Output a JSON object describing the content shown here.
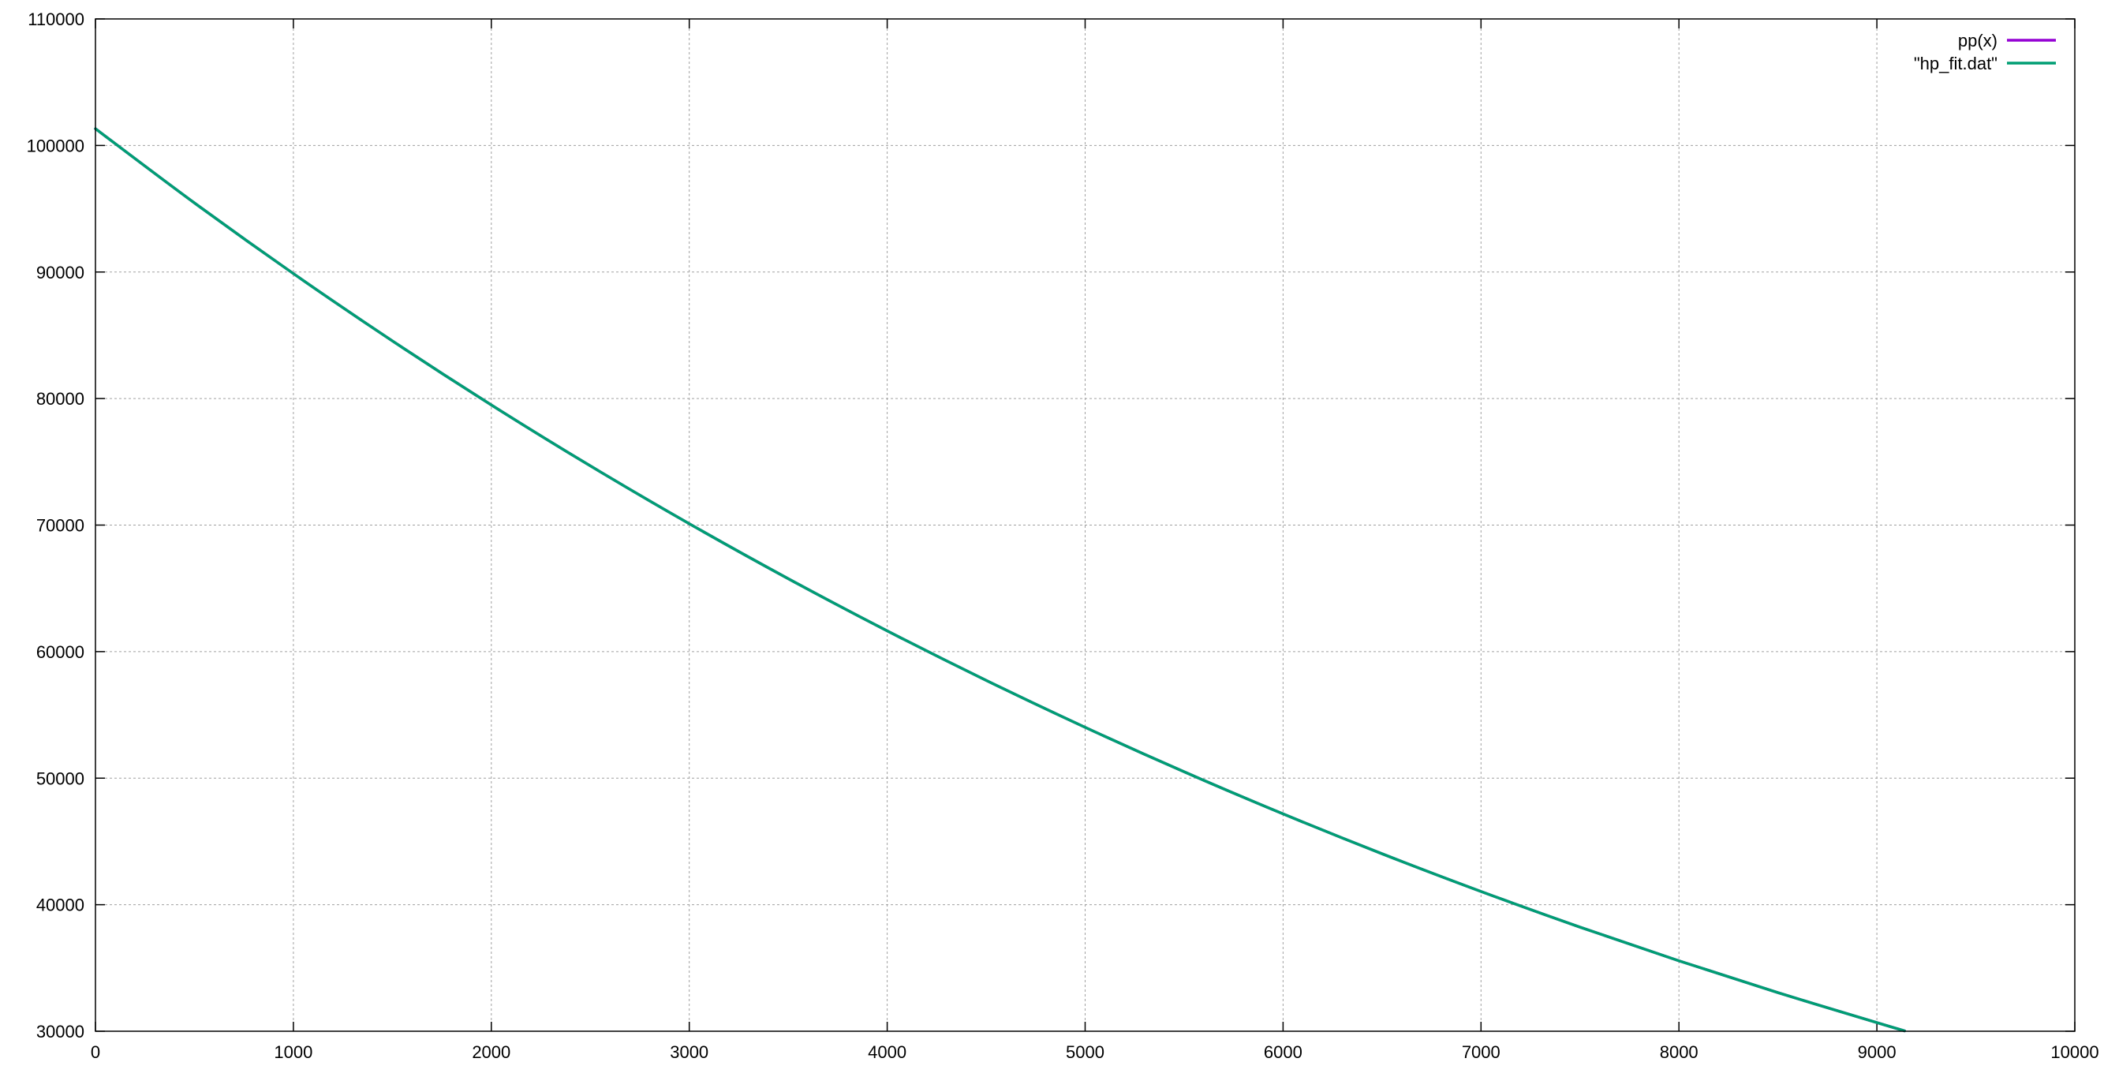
{
  "chart_data": {
    "type": "line",
    "title": "",
    "xlabel": "",
    "ylabel": "",
    "xlim": [
      0,
      10000
    ],
    "ylim": [
      30000,
      110000
    ],
    "x_ticks": [
      0,
      1000,
      2000,
      3000,
      4000,
      5000,
      6000,
      7000,
      8000,
      9000,
      10000
    ],
    "y_ticks": [
      30000,
      40000,
      50000,
      60000,
      70000,
      80000,
      90000,
      100000,
      110000
    ],
    "x_tick_labels": [
      "0",
      "1000",
      "2000",
      "3000",
      "4000",
      "5000",
      "6000",
      "7000",
      "8000",
      "9000",
      "10000"
    ],
    "y_tick_labels": [
      "30000",
      "40000",
      "50000",
      "60000",
      "70000",
      "80000",
      "90000",
      "100000",
      "110000"
    ],
    "grid": true,
    "legend": {
      "placement": "top-right",
      "entries": [
        "pp(x)",
        "\"hp_fit.dat\""
      ]
    },
    "series": [
      {
        "name": "pp(x)",
        "color": "#9400d3",
        "x": [
          0,
          500,
          1000,
          1500,
          2000,
          2500,
          3000,
          3500,
          4000,
          4500,
          5000,
          5500,
          6000,
          6500,
          7000,
          7500,
          8000,
          8500,
          9000,
          9140
        ],
        "y": [
          101325,
          95461,
          89875,
          84556,
          79495,
          74682,
          70109,
          65765,
          61641,
          57729,
          54020,
          50505,
          47177,
          44026,
          41046,
          38228,
          35565,
          33052,
          30680,
          30030
        ]
      },
      {
        "name": "\"hp_fit.dat\"",
        "color": "#009e73",
        "x": [
          0,
          500,
          1000,
          1500,
          2000,
          2500,
          3000,
          3500,
          4000,
          4500,
          5000,
          5500,
          6000,
          6500,
          7000,
          7500,
          8000,
          8500,
          9000,
          9140
        ],
        "y": [
          101325,
          95461,
          89875,
          84556,
          79495,
          74682,
          70109,
          65765,
          61641,
          57729,
          54020,
          50505,
          47177,
          44026,
          41046,
          38228,
          35565,
          33052,
          30680,
          30030
        ]
      }
    ]
  }
}
